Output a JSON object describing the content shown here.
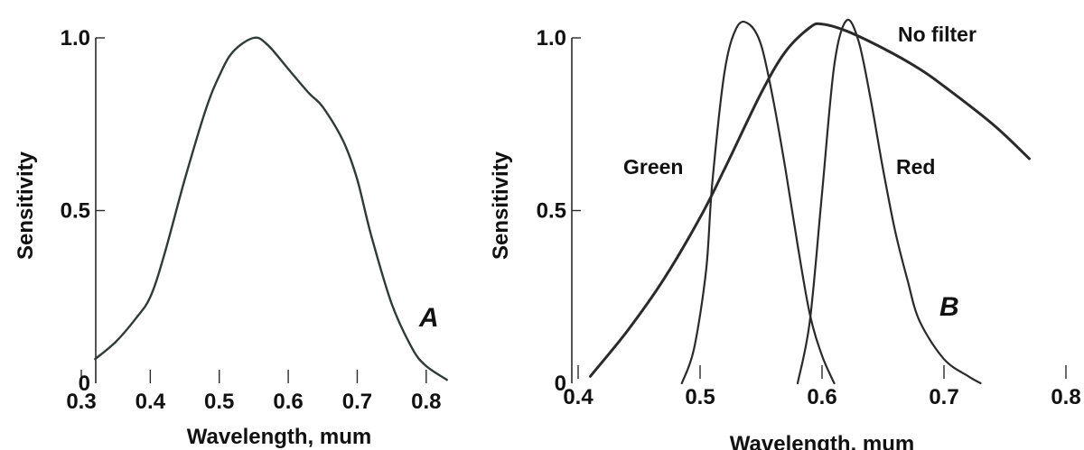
{
  "chart_data": [
    {
      "type": "line",
      "panel_label": "A",
      "xlabel": "Wavelength, mum",
      "ylabel": "Sensitivity",
      "xlim": [
        0.3,
        0.85
      ],
      "ylim": [
        0,
        1.0
      ],
      "xticks": [
        0.3,
        0.4,
        0.5,
        0.6,
        0.7,
        0.8
      ],
      "xtick_labels": [
        "0.3",
        "0.4",
        "0.5",
        "0.6",
        "0.7",
        "0.8"
      ],
      "yticks": [
        0,
        0.5,
        1.0
      ],
      "ytick_labels": [
        "0",
        "0.5",
        "1.0"
      ],
      "grid": false,
      "series": [
        {
          "name": "",
          "color": "#2f3b36",
          "x": [
            0.32,
            0.35,
            0.38,
            0.4,
            0.42,
            0.45,
            0.48,
            0.5,
            0.52,
            0.55,
            0.57,
            0.6,
            0.63,
            0.65,
            0.68,
            0.7,
            0.72,
            0.75,
            0.78,
            0.8,
            0.83
          ],
          "y": [
            0.07,
            0.12,
            0.19,
            0.25,
            0.37,
            0.59,
            0.79,
            0.89,
            0.96,
            1.0,
            0.98,
            0.91,
            0.84,
            0.8,
            0.7,
            0.59,
            0.43,
            0.23,
            0.1,
            0.05,
            0.01
          ]
        }
      ]
    },
    {
      "type": "line",
      "panel_label": "B",
      "xlabel": "Wavelength, mum",
      "ylabel": "Sensitivity",
      "xlim": [
        0.4,
        0.8
      ],
      "ylim": [
        0,
        1.0
      ],
      "xticks": [
        0.4,
        0.5,
        0.6,
        0.7,
        0.8
      ],
      "xtick_labels": [
        "0.4",
        "0.5",
        "0.6",
        "0.7",
        "0.8"
      ],
      "yticks": [
        0,
        0.5,
        1.0
      ],
      "ytick_labels": [
        "0",
        "0.5",
        "1.0"
      ],
      "grid": false,
      "series": [
        {
          "name": "No filter",
          "color": "#2a2a2a",
          "x": [
            0.41,
            0.44,
            0.47,
            0.5,
            0.52,
            0.55,
            0.57,
            0.59,
            0.6,
            0.62,
            0.65,
            0.68,
            0.7,
            0.74,
            0.77
          ],
          "y": [
            0.02,
            0.15,
            0.3,
            0.48,
            0.62,
            0.84,
            0.96,
            1.03,
            1.04,
            1.02,
            0.97,
            0.91,
            0.86,
            0.75,
            0.65
          ]
        },
        {
          "name": "Green",
          "color": "#2a2a2a",
          "x": [
            0.485,
            0.495,
            0.505,
            0.51,
            0.52,
            0.53,
            0.54,
            0.55,
            0.56,
            0.57,
            0.58,
            0.59,
            0.6,
            0.61
          ],
          "y": [
            0.0,
            0.1,
            0.33,
            0.58,
            0.9,
            1.03,
            1.04,
            0.98,
            0.82,
            0.62,
            0.4,
            0.2,
            0.08,
            0.0
          ]
        },
        {
          "name": "Red",
          "color": "#2a2a2a",
          "x": [
            0.58,
            0.59,
            0.6,
            0.61,
            0.62,
            0.63,
            0.64,
            0.65,
            0.66,
            0.67,
            0.68,
            0.7,
            0.72,
            0.73
          ],
          "y": [
            0.0,
            0.18,
            0.55,
            0.92,
            1.05,
            0.99,
            0.82,
            0.62,
            0.44,
            0.3,
            0.18,
            0.07,
            0.02,
            0.0
          ]
        }
      ]
    }
  ]
}
